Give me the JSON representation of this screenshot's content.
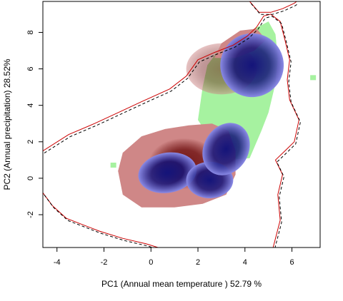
{
  "chart_data": {
    "type": "heatmap",
    "title": "",
    "xlabel": "PC1 (Annual mean temperature ) 52.79 %",
    "ylabel": "PC2 (Annual precipitation) 28.52%",
    "xlim": [
      -4.6,
      7.2
    ],
    "ylim": [
      -3.8,
      9.7
    ],
    "x_ticks": [
      -4,
      -2,
      0,
      2,
      4,
      6
    ],
    "y_ticks": [
      -2,
      0,
      2,
      4,
      6,
      8
    ],
    "grid": false,
    "legend": "none",
    "colors": {
      "green_niche": "#a6f2a0",
      "red_niche_light": "#cf8787",
      "red_niche_dark": "#6b0c0c",
      "blue_niche_light": "#8a8ae6",
      "blue_niche_dark": "#14147a",
      "red_contour": "#cc0000",
      "black_contour": "#000000"
    },
    "regions": [
      {
        "name": "green niche",
        "color": "green_niche",
        "polygon": [
          [
            2.0,
            3.2
          ],
          [
            2.2,
            5.0
          ],
          [
            2.4,
            6.2
          ],
          [
            2.8,
            6.9
          ],
          [
            3.6,
            7.6
          ],
          [
            4.4,
            8.2
          ],
          [
            5.0,
            8.6
          ],
          [
            5.3,
            7.9
          ],
          [
            5.4,
            6.6
          ],
          [
            5.3,
            5.2
          ],
          [
            5.0,
            3.6
          ],
          [
            4.7,
            2.6
          ],
          [
            4.2,
            1.1
          ],
          [
            3.4,
            1.0
          ],
          [
            2.6,
            2.0
          ]
        ]
      },
      {
        "name": "red niche",
        "color_light": "red_niche_light",
        "color_dark": "red_niche_dark",
        "density_peaks": [
          [
            1.4,
            0.8
          ],
          [
            3.0,
            6.0
          ]
        ],
        "polygon": [
          [
            -1.4,
            0.4
          ],
          [
            -1.2,
            1.4
          ],
          [
            -0.4,
            2.3
          ],
          [
            0.6,
            2.7
          ],
          [
            1.6,
            2.9
          ],
          [
            2.6,
            3.0
          ],
          [
            3.3,
            2.6
          ],
          [
            3.6,
            1.5
          ],
          [
            3.6,
            0.2
          ],
          [
            3.2,
            -0.9
          ],
          [
            2.2,
            -1.4
          ],
          [
            1.0,
            -1.6
          ],
          [
            -0.4,
            -1.6
          ],
          [
            -1.2,
            -0.9
          ]
        ]
      },
      {
        "name": "red niche upper",
        "polygon": [
          [
            2.7,
            6.6
          ],
          [
            3.0,
            7.4
          ],
          [
            3.8,
            8.1
          ],
          [
            4.5,
            8.2
          ],
          [
            4.9,
            7.6
          ],
          [
            4.4,
            7.0
          ],
          [
            3.6,
            6.6
          ]
        ]
      },
      {
        "name": "blue niche",
        "color_light": "blue_niche_light",
        "color_dark": "blue_niche_dark",
        "lobes": [
          {
            "center": [
              0.7,
              0.3
            ],
            "rx": 1.25,
            "ry": 1.1,
            "rot": -10
          },
          {
            "center": [
              2.5,
              -0.1
            ],
            "rx": 1.0,
            "ry": 1.0,
            "rot": 0
          },
          {
            "center": [
              3.2,
              1.6
            ],
            "rx": 0.95,
            "ry": 1.5,
            "rot": 30
          },
          {
            "center": [
              4.3,
              6.2
            ],
            "rx": 1.35,
            "ry": 1.75,
            "rot": 5
          }
        ]
      }
    ],
    "contours": [
      {
        "name": "upper environment boundary",
        "colors": [
          "red_contour",
          "black_contour"
        ],
        "points": [
          [
            -4.6,
            1.5
          ],
          [
            -3.5,
            2.4
          ],
          [
            -2.4,
            3.0
          ],
          [
            -1.4,
            3.6
          ],
          [
            -0.4,
            4.2
          ],
          [
            0.8,
            4.9
          ],
          [
            1.5,
            5.6
          ],
          [
            2.0,
            6.5
          ],
          [
            2.7,
            6.9
          ],
          [
            3.5,
            7.3
          ],
          [
            4.1,
            7.8
          ],
          [
            4.5,
            8.3
          ],
          [
            4.8,
            8.9
          ],
          [
            5.1,
            9.0
          ],
          [
            5.5,
            8.6
          ],
          [
            5.7,
            7.6
          ],
          [
            5.9,
            6.5
          ],
          [
            5.8,
            5.4
          ],
          [
            5.9,
            4.3
          ],
          [
            6.3,
            3.2
          ],
          [
            6.1,
            2.0
          ],
          [
            5.7,
            1.5
          ],
          [
            5.3,
            1.0
          ],
          [
            5.6,
            0.2
          ],
          [
            5.4,
            -0.9
          ],
          [
            5.5,
            -2.3
          ],
          [
            5.3,
            -3.3
          ],
          [
            5.2,
            -3.8
          ]
        ]
      },
      {
        "name": "lower environment boundary",
        "colors": [
          "red_contour",
          "black_contour"
        ],
        "points": [
          [
            -4.6,
            -0.8
          ],
          [
            -4.2,
            -1.5
          ],
          [
            -3.6,
            -2.2
          ],
          [
            -3.0,
            -2.5
          ],
          [
            -2.2,
            -2.9
          ],
          [
            -1.2,
            -3.3
          ],
          [
            -0.2,
            -3.6
          ],
          [
            0.3,
            -3.8
          ]
        ]
      },
      {
        "name": "top-right boundary",
        "colors": [
          "red_contour",
          "black_contour"
        ],
        "points": [
          [
            4.2,
            9.7
          ],
          [
            4.6,
            9.1
          ],
          [
            5.1,
            9.1
          ],
          [
            5.6,
            9.3
          ],
          [
            6.1,
            9.6
          ],
          [
            6.2,
            9.7
          ]
        ]
      }
    ],
    "markers": [
      {
        "name": "isolated green patch",
        "x": -1.6,
        "y": 0.7,
        "color": "green_niche"
      },
      {
        "name": "isolated green patch right",
        "x": 6.9,
        "y": 5.5,
        "color": "green_niche"
      }
    ]
  }
}
